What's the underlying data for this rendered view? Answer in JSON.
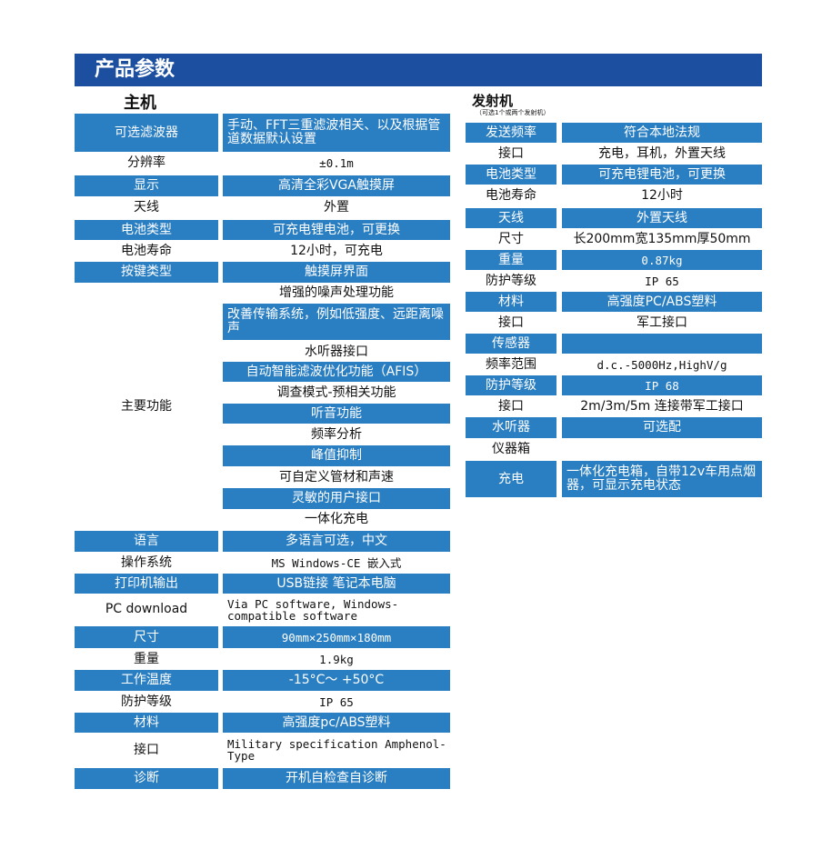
{
  "title": "产品参数",
  "colors": {
    "header": "#1c4f9f",
    "cell": "#2a7ec2"
  },
  "host": {
    "heading": "主机",
    "rows": [
      {
        "label": "可选滤波器",
        "value": "手动、FFT三重滤波相关、以及根据管道数据默认设置",
        "hl": true
      },
      {
        "label": "分辨率",
        "value": "±0.1m",
        "hl": false
      },
      {
        "label": "显示",
        "value": "高清全彩VGA触摸屏",
        "hl": true
      },
      {
        "label": "天线",
        "value": "外置",
        "hl": false
      },
      {
        "label": "电池类型",
        "value": "可充电锂电池，可更换",
        "hl": true
      },
      {
        "label": "电池寿命",
        "value": "12小时，可充电",
        "hl": false
      },
      {
        "label": "按键类型",
        "value": "触摸屏界面",
        "hl": true
      },
      {
        "label": "主要功能",
        "features": [
          "增强的噪声处理功能",
          "改善传输系统，例如低强度、远距离噪声",
          "水听器接口",
          "自动智能滤波优化功能（AFIS）",
          "调查模式-预相关功能",
          "听音功能",
          "频率分析",
          "峰值抑制",
          "可自定义管材和声速",
          "灵敏的用户接口",
          "一体化充电"
        ]
      },
      {
        "label": "语言",
        "value": "多语言可选，中文",
        "hl": true
      },
      {
        "label": "操作系统",
        "value": "MS Windows-CE 嵌入式",
        "hl": false
      },
      {
        "label": "打印机输出",
        "value": "USB链接 笔记本电脑",
        "hl": true
      },
      {
        "label": "PC download",
        "value": "Via PC software, Windows-compatible software",
        "hl": false
      },
      {
        "label": "尺寸",
        "value": "90mm×250mm×180mm",
        "hl": true
      },
      {
        "label": "重量",
        "value": "1.9kg",
        "hl": false
      },
      {
        "label": "工作温度",
        "value": "-15°C～ +50°C",
        "hl": true
      },
      {
        "label": "防护等级",
        "value": "IP 65",
        "hl": false
      },
      {
        "label": "材料",
        "value": "高强度pc/ABS塑料",
        "hl": true
      },
      {
        "label": "接口",
        "value": "Military specification Amphenol-Type",
        "hl": false
      },
      {
        "label": "诊断",
        "value": "开机自检查自诊断",
        "hl": true
      }
    ]
  },
  "transmitter": {
    "heading": "发射机",
    "subheading": "（可选1个或两个发射机）",
    "rows": [
      {
        "label": "发送频率",
        "value": "符合本地法规",
        "hl": true
      },
      {
        "label": "接口",
        "value": "充电，耳机，外置天线",
        "hl": false
      },
      {
        "label": "电池类型",
        "value": "可充电锂电池，可更换",
        "hl": true
      },
      {
        "label": "电池寿命",
        "value": "12小时",
        "hl": false
      },
      {
        "label": "天线",
        "value": "外置天线",
        "hl": true
      },
      {
        "label": "尺寸",
        "value": "长200mm宽135mm厚50mm",
        "hl": false
      },
      {
        "label": "重量",
        "value": "0.87kg",
        "hl": true
      },
      {
        "label": "防护等级",
        "value": "IP 65",
        "hl": false
      },
      {
        "label": "材料",
        "value": "高强度PC/ABS塑料",
        "hl": true
      },
      {
        "label": "接口",
        "value": "军工接口",
        "hl": false
      },
      {
        "label": "传感器",
        "value": "",
        "hl": true
      },
      {
        "label": "频率范围",
        "value": "d.c.-5000Hz,HighV/g",
        "hl": false
      },
      {
        "label": "防护等级",
        "value": "IP 68",
        "hl": true
      },
      {
        "label": "接口",
        "value": "2m/3m/5m 连接带军工接口",
        "hl": false
      },
      {
        "label": "水听器",
        "value": "可选配",
        "hl": true
      },
      {
        "label": "仪器箱",
        "value": "",
        "hl": false
      },
      {
        "label": "充电",
        "value": "一体化充电箱，自带12v车用点烟器，可显示充电状态",
        "hl": true
      }
    ]
  }
}
